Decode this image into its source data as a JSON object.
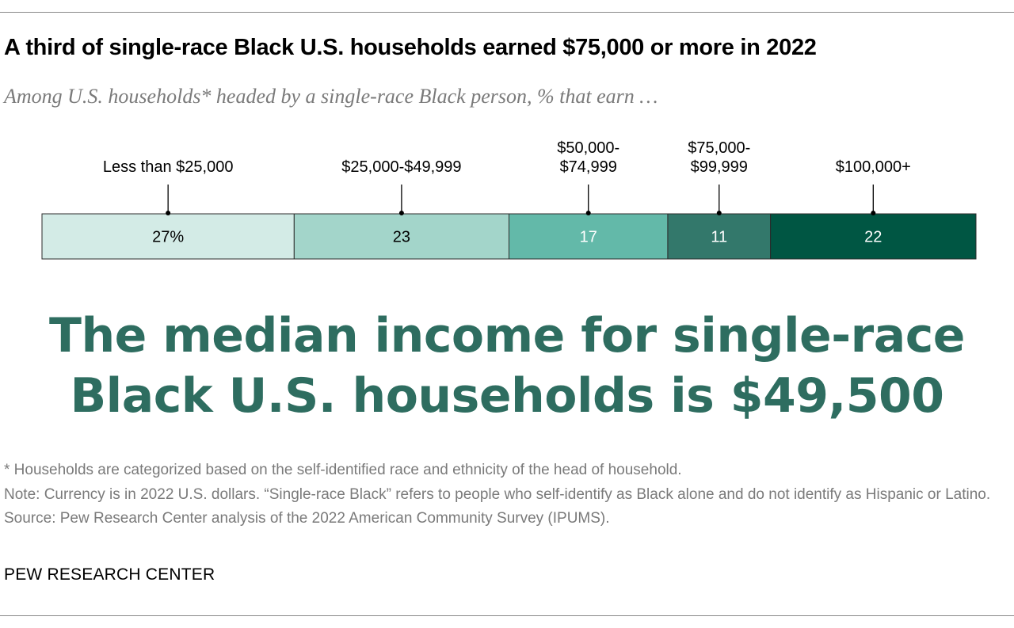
{
  "title": "A third of single-race Black U.S. households earned $75,000 or more in 2022",
  "subtitle": "Among U.S. households* headed by a single-race Black person, % that earn …",
  "chart_data": {
    "type": "bar",
    "orientation": "horizontal-stacked",
    "categories": [
      [
        "Less than $25,000"
      ],
      [
        "$25,000-$49,999"
      ],
      [
        "$50,000-",
        "$74,999"
      ],
      [
        "$75,000-",
        "$99,999"
      ],
      [
        "$100,000+"
      ]
    ],
    "values": [
      27,
      23,
      17,
      11,
      22
    ],
    "value_labels": [
      "27%",
      "23",
      "17",
      "11",
      "22"
    ],
    "colors": [
      "#d3ebe6",
      "#a3d5ca",
      "#63b9a9",
      "#33786b",
      "#005643"
    ],
    "label_colors": [
      "#000000",
      "#000000",
      "#ffffff",
      "#ffffff",
      "#ffffff"
    ],
    "xlim": [
      0,
      100
    ]
  },
  "headline": {
    "line1": "The median income for single-race",
    "line2": "Black U.S. households is $49,500"
  },
  "notes": {
    "footnote": "* Households are categorized based on the self-identified race and ethnicity of the head of household.",
    "note": "Note: Currency is in 2022 U.S. dollars. “Single-race Black” refers to people who self-identify as Black alone and do not identify as Hispanic or Latino.",
    "source": "Source: Pew Research Center analysis of the 2022 American Community Survey (IPUMS)."
  },
  "footer": "PEW RESEARCH CENTER"
}
